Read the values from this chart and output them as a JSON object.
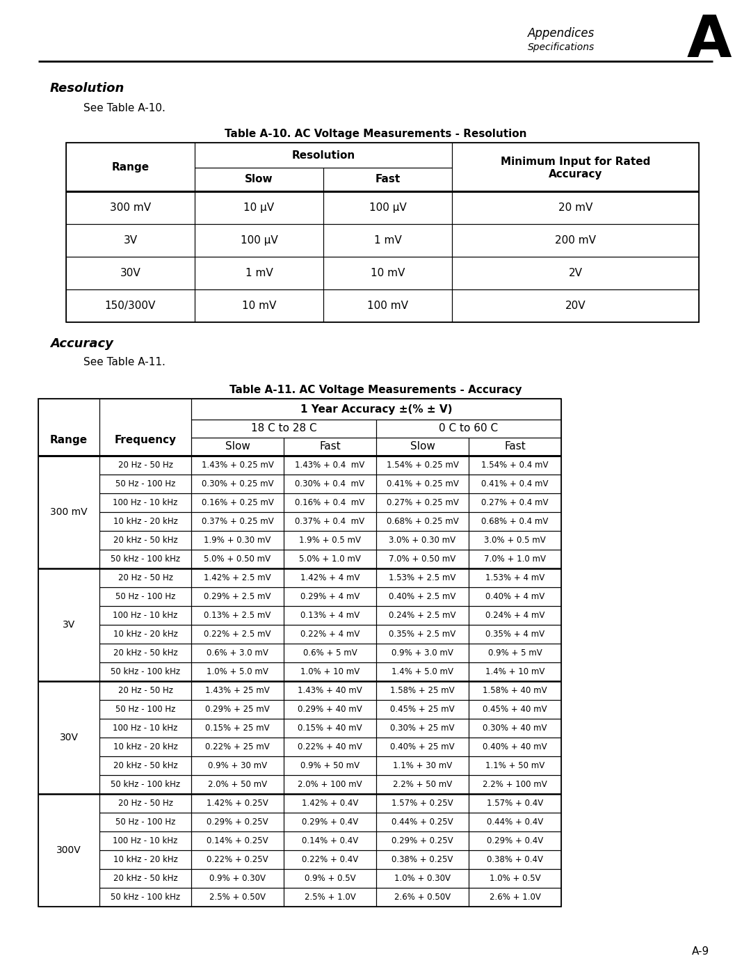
{
  "page_title_top_right": "Appendices",
  "page_subtitle_top_right": "Specifications",
  "page_letter": "A",
  "page_number": "A-9",
  "section1_title": "Resolution",
  "section1_subtitle": "See Table A-10.",
  "table1_title": "Table A-10. AC Voltage Measurements - Resolution",
  "table1_data": [
    [
      "300 mV",
      "10 µV",
      "100 µV",
      "20 mV"
    ],
    [
      "3V",
      "100 µV",
      "1 mV",
      "200 mV"
    ],
    [
      "30V",
      "1 mV",
      "10 mV",
      "2V"
    ],
    [
      "150/300V",
      "10 mV",
      "100 mV",
      "20V"
    ]
  ],
  "section2_title": "Accuracy",
  "section2_subtitle": "See Table A-11.",
  "table2_title": "Table A-11. AC Voltage Measurements - Accuracy",
  "table2_data": [
    [
      "300 mV",
      "20 Hz - 50 Hz",
      "1.43% + 0.25 mV",
      "1.43% + 0.4  mV",
      "1.54% + 0.25 mV",
      "1.54% + 0.4 mV"
    ],
    [
      "",
      "50 Hz - 100 Hz",
      "0.30% + 0.25 mV",
      "0.30% + 0.4  mV",
      "0.41% + 0.25 mV",
      "0.41% + 0.4 mV"
    ],
    [
      "",
      "100 Hz - 10 kHz",
      "0.16% + 0.25 mV",
      "0.16% + 0.4  mV",
      "0.27% + 0.25 mV",
      "0.27% + 0.4 mV"
    ],
    [
      "",
      "10 kHz - 20 kHz",
      "0.37% + 0.25 mV",
      "0.37% + 0.4  mV",
      "0.68% + 0.25 mV",
      "0.68% + 0.4 mV"
    ],
    [
      "",
      "20 kHz - 50 kHz",
      "1.9% + 0.30 mV",
      "1.9% + 0.5 mV",
      "3.0% + 0.30 mV",
      "3.0% + 0.5 mV"
    ],
    [
      "",
      "50 kHz - 100 kHz",
      "5.0% + 0.50 mV",
      "5.0% + 1.0 mV",
      "7.0% + 0.50 mV",
      "7.0% + 1.0 mV"
    ],
    [
      "3V",
      "20 Hz - 50 Hz",
      "1.42% + 2.5 mV",
      "1.42% + 4 mV",
      "1.53% + 2.5 mV",
      "1.53% + 4 mV"
    ],
    [
      "",
      "50 Hz - 100 Hz",
      "0.29% + 2.5 mV",
      "0.29% + 4 mV",
      "0.40% + 2.5 mV",
      "0.40% + 4 mV"
    ],
    [
      "",
      "100 Hz - 10 kHz",
      "0.13% + 2.5 mV",
      "0.13% + 4 mV",
      "0.24% + 2.5 mV",
      "0.24% + 4 mV"
    ],
    [
      "",
      "10 kHz - 20 kHz",
      "0.22% + 2.5 mV",
      "0.22% + 4 mV",
      "0.35% + 2.5 mV",
      "0.35% + 4 mV"
    ],
    [
      "",
      "20 kHz - 50 kHz",
      "0.6% + 3.0 mV",
      "0.6% + 5 mV",
      "0.9% + 3.0 mV",
      "0.9% + 5 mV"
    ],
    [
      "",
      "50 kHz - 100 kHz",
      "1.0% + 5.0 mV",
      "1.0% + 10 mV",
      "1.4% + 5.0 mV",
      "1.4% + 10 mV"
    ],
    [
      "30V",
      "20 Hz - 50 Hz",
      "1.43% + 25 mV",
      "1.43% + 40 mV",
      "1.58% + 25 mV",
      "1.58% + 40 mV"
    ],
    [
      "",
      "50 Hz - 100 Hz",
      "0.29% + 25 mV",
      "0.29% + 40 mV",
      "0.45% + 25 mV",
      "0.45% + 40 mV"
    ],
    [
      "",
      "100 Hz - 10 kHz",
      "0.15% + 25 mV",
      "0.15% + 40 mV",
      "0.30% + 25 mV",
      "0.30% + 40 mV"
    ],
    [
      "",
      "10 kHz - 20 kHz",
      "0.22% + 25 mV",
      "0.22% + 40 mV",
      "0.40% + 25 mV",
      "0.40% + 40 mV"
    ],
    [
      "",
      "20 kHz - 50 kHz",
      "0.9% + 30 mV",
      "0.9% + 50 mV",
      "1.1% + 30 mV",
      "1.1% + 50 mV"
    ],
    [
      "",
      "50 kHz - 100 kHz",
      "2.0% + 50 mV",
      "2.0% + 100 mV",
      "2.2% + 50 mV",
      "2.2% + 100 mV"
    ],
    [
      "300V",
      "20 Hz - 50 Hz",
      "1.42% + 0.25V",
      "1.42% + 0.4V",
      "1.57% + 0.25V",
      "1.57% + 0.4V"
    ],
    [
      "",
      "50 Hz - 100 Hz",
      "0.29% + 0.25V",
      "0.29% + 0.4V",
      "0.44% + 0.25V",
      "0.44% + 0.4V"
    ],
    [
      "",
      "100 Hz - 10 kHz",
      "0.14% + 0.25V",
      "0.14% + 0.4V",
      "0.29% + 0.25V",
      "0.29% + 0.4V"
    ],
    [
      "",
      "10 kHz - 20 kHz",
      "0.22% + 0.25V",
      "0.22% + 0.4V",
      "0.38% + 0.25V",
      "0.38% + 0.4V"
    ],
    [
      "",
      "20 kHz - 50 kHz",
      "0.9% + 0.30V",
      "0.9% + 0.5V",
      "1.0% + 0.30V",
      "1.0% + 0.5V"
    ],
    [
      "",
      "50 kHz - 100 kHz",
      "2.5% + 0.50V",
      "2.5% + 1.0V",
      "2.6% + 0.50V",
      "2.6% + 1.0V"
    ]
  ]
}
